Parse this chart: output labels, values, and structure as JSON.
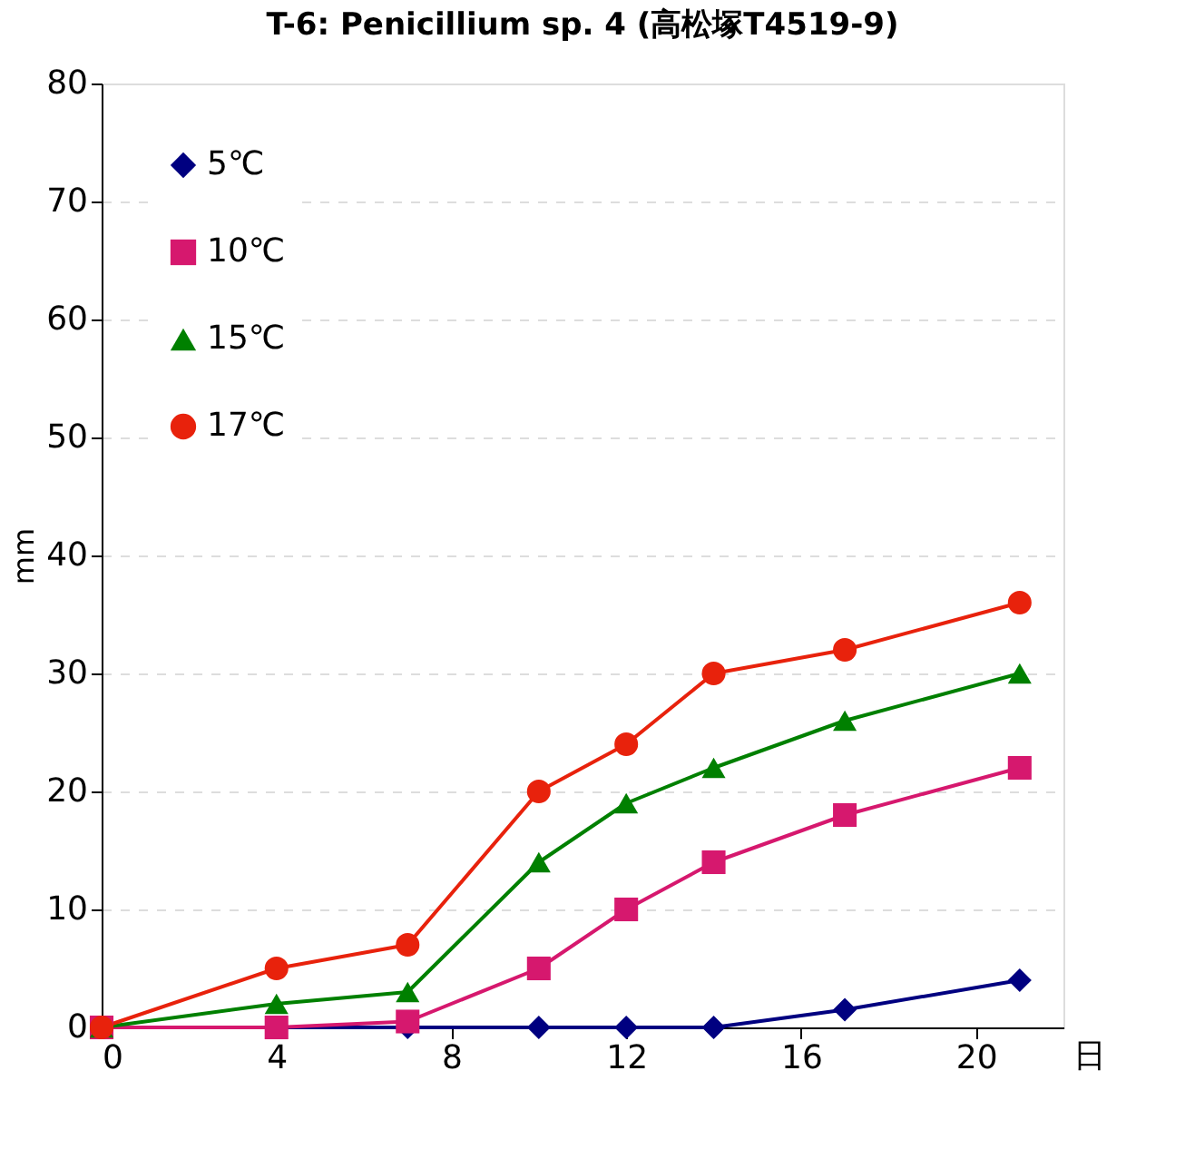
{
  "chart_data": {
    "type": "line",
    "title": "T-6: Penicillium sp. 4 (高松塚T4519-9)",
    "xlabel": "日",
    "ylabel": "mm",
    "x": [
      0,
      4,
      7,
      10,
      12,
      14,
      17,
      21
    ],
    "xlim": [
      0,
      22
    ],
    "xticks": [
      0,
      4,
      8,
      12,
      16,
      20
    ],
    "ylim": [
      0,
      80
    ],
    "yticks": [
      0,
      10,
      20,
      30,
      40,
      50,
      60,
      70,
      80
    ],
    "grid": "y",
    "legend": "top left",
    "line_style": "solid",
    "series": [
      {
        "name": "5℃",
        "color": "#000080",
        "marker": "diamond",
        "values": [
          0,
          0,
          0,
          0,
          0,
          0,
          1.5,
          4
        ]
      },
      {
        "name": "10℃",
        "color": "#d6186e",
        "marker": "square",
        "values": [
          0,
          0,
          0.5,
          5,
          10,
          14,
          18,
          22
        ]
      },
      {
        "name": "15℃",
        "color": "#008000",
        "marker": "triangle",
        "values": [
          0,
          2,
          3,
          14,
          19,
          22,
          26,
          30
        ]
      },
      {
        "name": "17℃",
        "color": "#e8220c",
        "marker": "circle",
        "values": [
          0,
          5,
          7,
          20,
          24,
          30,
          32,
          36
        ]
      }
    ]
  }
}
